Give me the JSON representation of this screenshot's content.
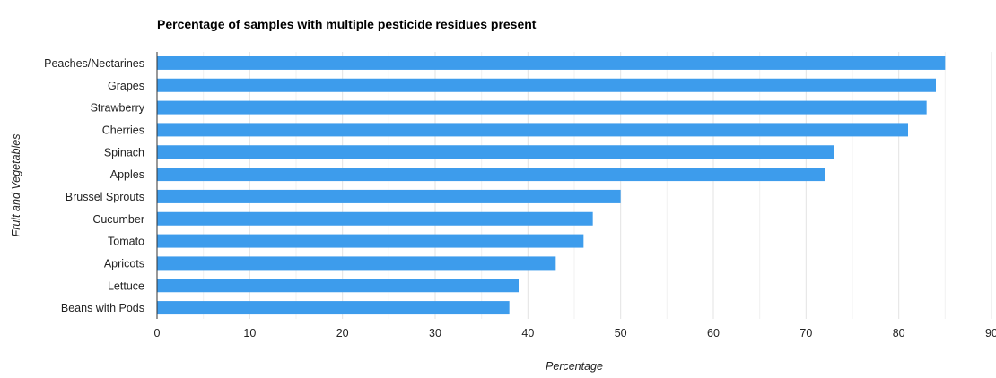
{
  "chart_data": {
    "type": "bar",
    "orientation": "horizontal",
    "title": "Percentage of samples with multiple pesticide residues present",
    "xlabel": "Percentage",
    "ylabel": "Fruit and Vegetables",
    "categories": [
      "Peaches/Nectarines",
      "Grapes",
      "Strawberry",
      "Cherries",
      "Spinach",
      "Apples",
      "Brussel Sprouts",
      "Cucumber",
      "Tomato",
      "Apricots",
      "Lettuce",
      "Beans with Pods"
    ],
    "values": [
      85,
      84,
      83,
      81,
      73,
      72,
      50,
      47,
      46,
      43,
      39,
      38
    ],
    "xlim": [
      0,
      90
    ],
    "xticks": [
      0,
      10,
      20,
      30,
      40,
      50,
      60,
      70,
      80,
      90
    ],
    "grid": true,
    "legend": "none",
    "bar_color": "#3d9cec",
    "gridline_color": "#e3e3e3"
  }
}
